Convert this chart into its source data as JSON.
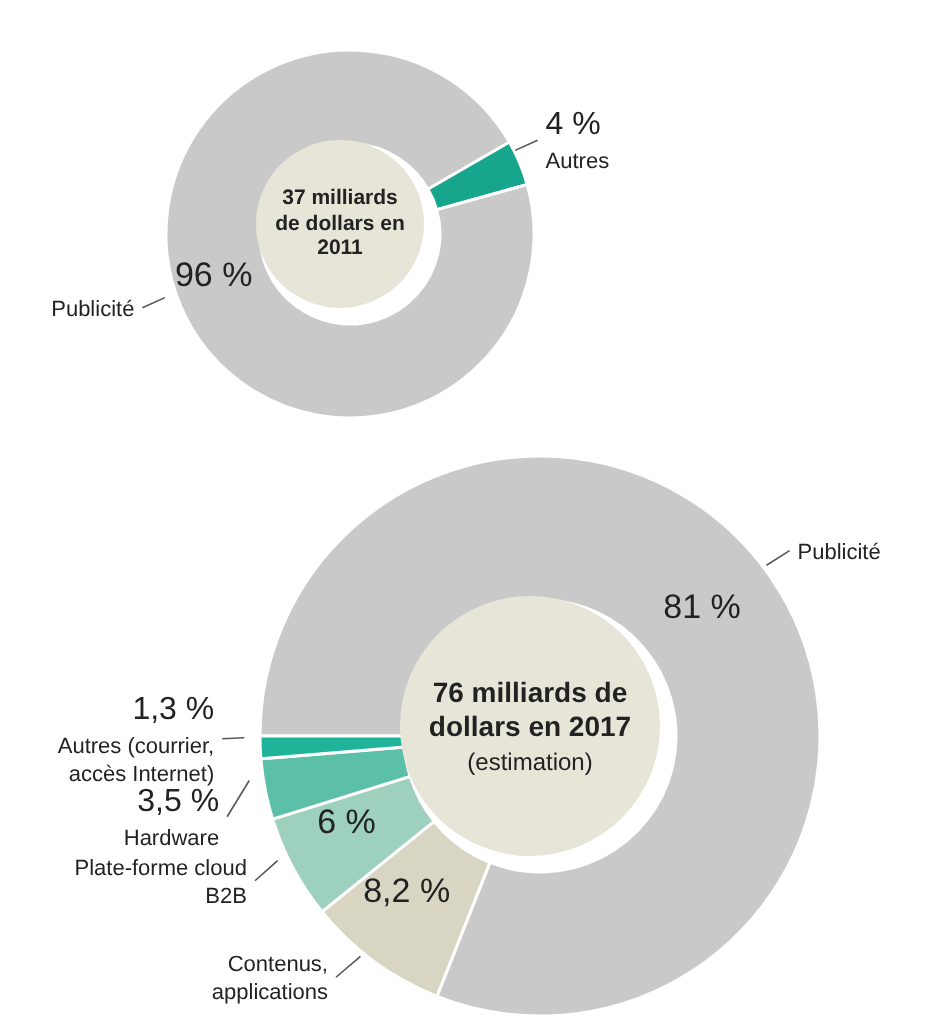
{
  "chart_data": [
    {
      "type": "donut",
      "title": "37 milliards de dollars en 2011",
      "categories": [
        "Autres",
        "Publicité"
      ],
      "values": [
        4,
        96
      ],
      "colors": [
        "#17a58e",
        "#c9c9c9"
      ],
      "value_labels": [
        "4 %",
        "96 %"
      ],
      "legend": false
    },
    {
      "type": "donut",
      "title": "76 milliards de dollars en 2017",
      "subtitle": "(estimation)",
      "categories": [
        "Publicité",
        "Contenus, applications",
        "Plate-forme cloud B2B",
        "Hardware",
        "Autres (courrier, accès Internet)"
      ],
      "values": [
        81,
        8.2,
        6,
        3.5,
        1.3
      ],
      "colors": [
        "#c9c9c9",
        "#d8d5c2",
        "#9dd1be",
        "#5cbfa8",
        "#1fb39a"
      ],
      "value_labels": [
        "81 %",
        "8,2 %",
        "6 %",
        "3,5 %",
        "1,3 %"
      ],
      "legend": false
    }
  ]
}
